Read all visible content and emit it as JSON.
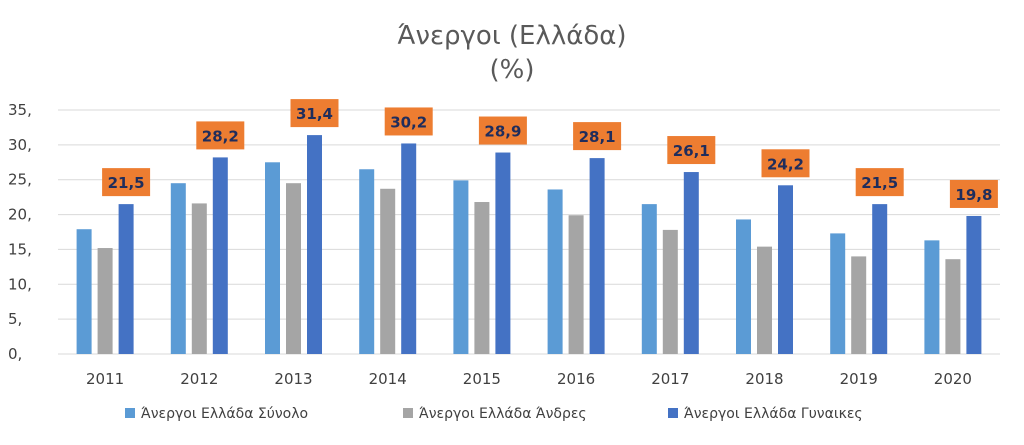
{
  "chart_data": {
    "type": "bar",
    "title": "Άνεργοι (Ελλάδα)",
    "subtitle": "(%)",
    "categories": [
      "2011",
      "2012",
      "2013",
      "2014",
      "2015",
      "2016",
      "2017",
      "2018",
      "2019",
      "2020"
    ],
    "series": [
      {
        "name": "Άνεργοι Ελλάδα Σύνολο",
        "color": "#5b9bd5",
        "values": [
          17.9,
          24.5,
          27.5,
          26.5,
          24.9,
          23.6,
          21.5,
          19.3,
          17.3,
          16.3
        ]
      },
      {
        "name": "Άνεργοι Ελλάδα Άνδρες",
        "color": "#a5a5a5",
        "values": [
          15.2,
          21.6,
          24.5,
          23.7,
          21.8,
          19.9,
          17.8,
          15.4,
          14.0,
          13.6
        ]
      },
      {
        "name": "Άνεργοι Ελλάδα Γυναικες",
        "color": "#4472c4",
        "values": [
          21.5,
          28.2,
          31.4,
          30.2,
          28.9,
          28.1,
          26.1,
          24.2,
          21.5,
          19.8
        ]
      }
    ],
    "data_labels": {
      "series_index": 2,
      "labels": [
        "21,5",
        "28,2",
        "31,4",
        "30,2",
        "28,9",
        "28,1",
        "26,1",
        "24,2",
        "21,5",
        "19,8"
      ],
      "box_color": "#ed7d31",
      "text_color": "#1f2d5c"
    },
    "y_ticks": [
      {
        "value": 0,
        "label": "0,"
      },
      {
        "value": 5,
        "label": "5,"
      },
      {
        "value": 10,
        "label": "10,"
      },
      {
        "value": 15,
        "label": "15,"
      },
      {
        "value": 20,
        "label": "20,"
      },
      {
        "value": 25,
        "label": "25,"
      },
      {
        "value": 30,
        "label": "30,"
      },
      {
        "value": 35,
        "label": "35,"
      }
    ],
    "ylim": [
      0,
      35
    ],
    "xlabel": "",
    "ylabel": "",
    "grid": true,
    "grid_color": "#d9d9d9",
    "legend_position": "bottom"
  }
}
